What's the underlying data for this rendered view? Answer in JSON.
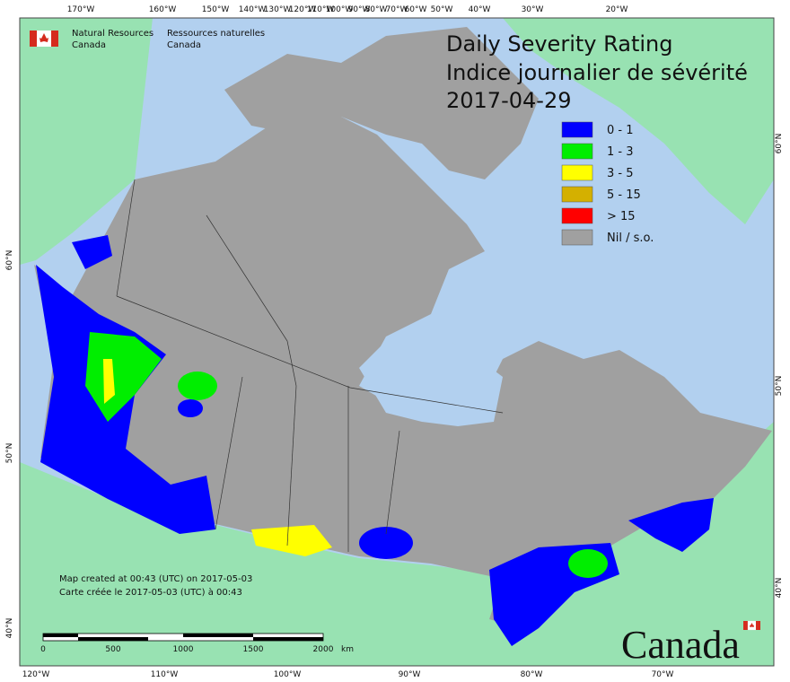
{
  "header": {
    "agency_en": "Natural Resources",
    "agency_en_2": "Canada",
    "agency_fr": "Ressources naturelles",
    "agency_fr_2": "Canada",
    "title_en": "Daily Severity Rating",
    "title_fr": "Indice journalier de sévérité",
    "date": "2017-04-29"
  },
  "legend": [
    {
      "label": "0 - 1",
      "color": "#0000ff"
    },
    {
      "label": "1 - 3",
      "color": "#00ee00"
    },
    {
      "label": "3 - 5",
      "color": "#ffff00"
    },
    {
      "label": "5 - 15",
      "color": "#d4b000"
    },
    {
      "label": "> 15",
      "color": "#ff0000"
    },
    {
      "label": "Nil / s.o.",
      "color": "#a0a0a0"
    }
  ],
  "graticule": {
    "top": [
      "170°W",
      "160°W",
      "150°W",
      "140°W",
      "130°W",
      "120°W",
      "110°W",
      "100°W",
      "90°W",
      "80°W",
      "70°W",
      "60°W",
      "50°W",
      "40°W",
      "30°W",
      "20°W"
    ],
    "bottom": [
      "120°W",
      "110°W",
      "100°W",
      "90°W",
      "80°W",
      "70°W"
    ],
    "left": [
      "60°N",
      "50°N",
      "40°N"
    ],
    "right": [
      "60°N",
      "50°N",
      "40°N"
    ]
  },
  "footer": {
    "created_en": "Map created at 00:43 (UTC) on 2017-05-03",
    "created_fr": "Carte créée le 2017-05-03 (UTC) à 00:43",
    "scale": [
      "0",
      "500",
      "1000",
      "1500",
      "2000"
    ],
    "scale_unit": "km",
    "wordmark": "Canada"
  }
}
